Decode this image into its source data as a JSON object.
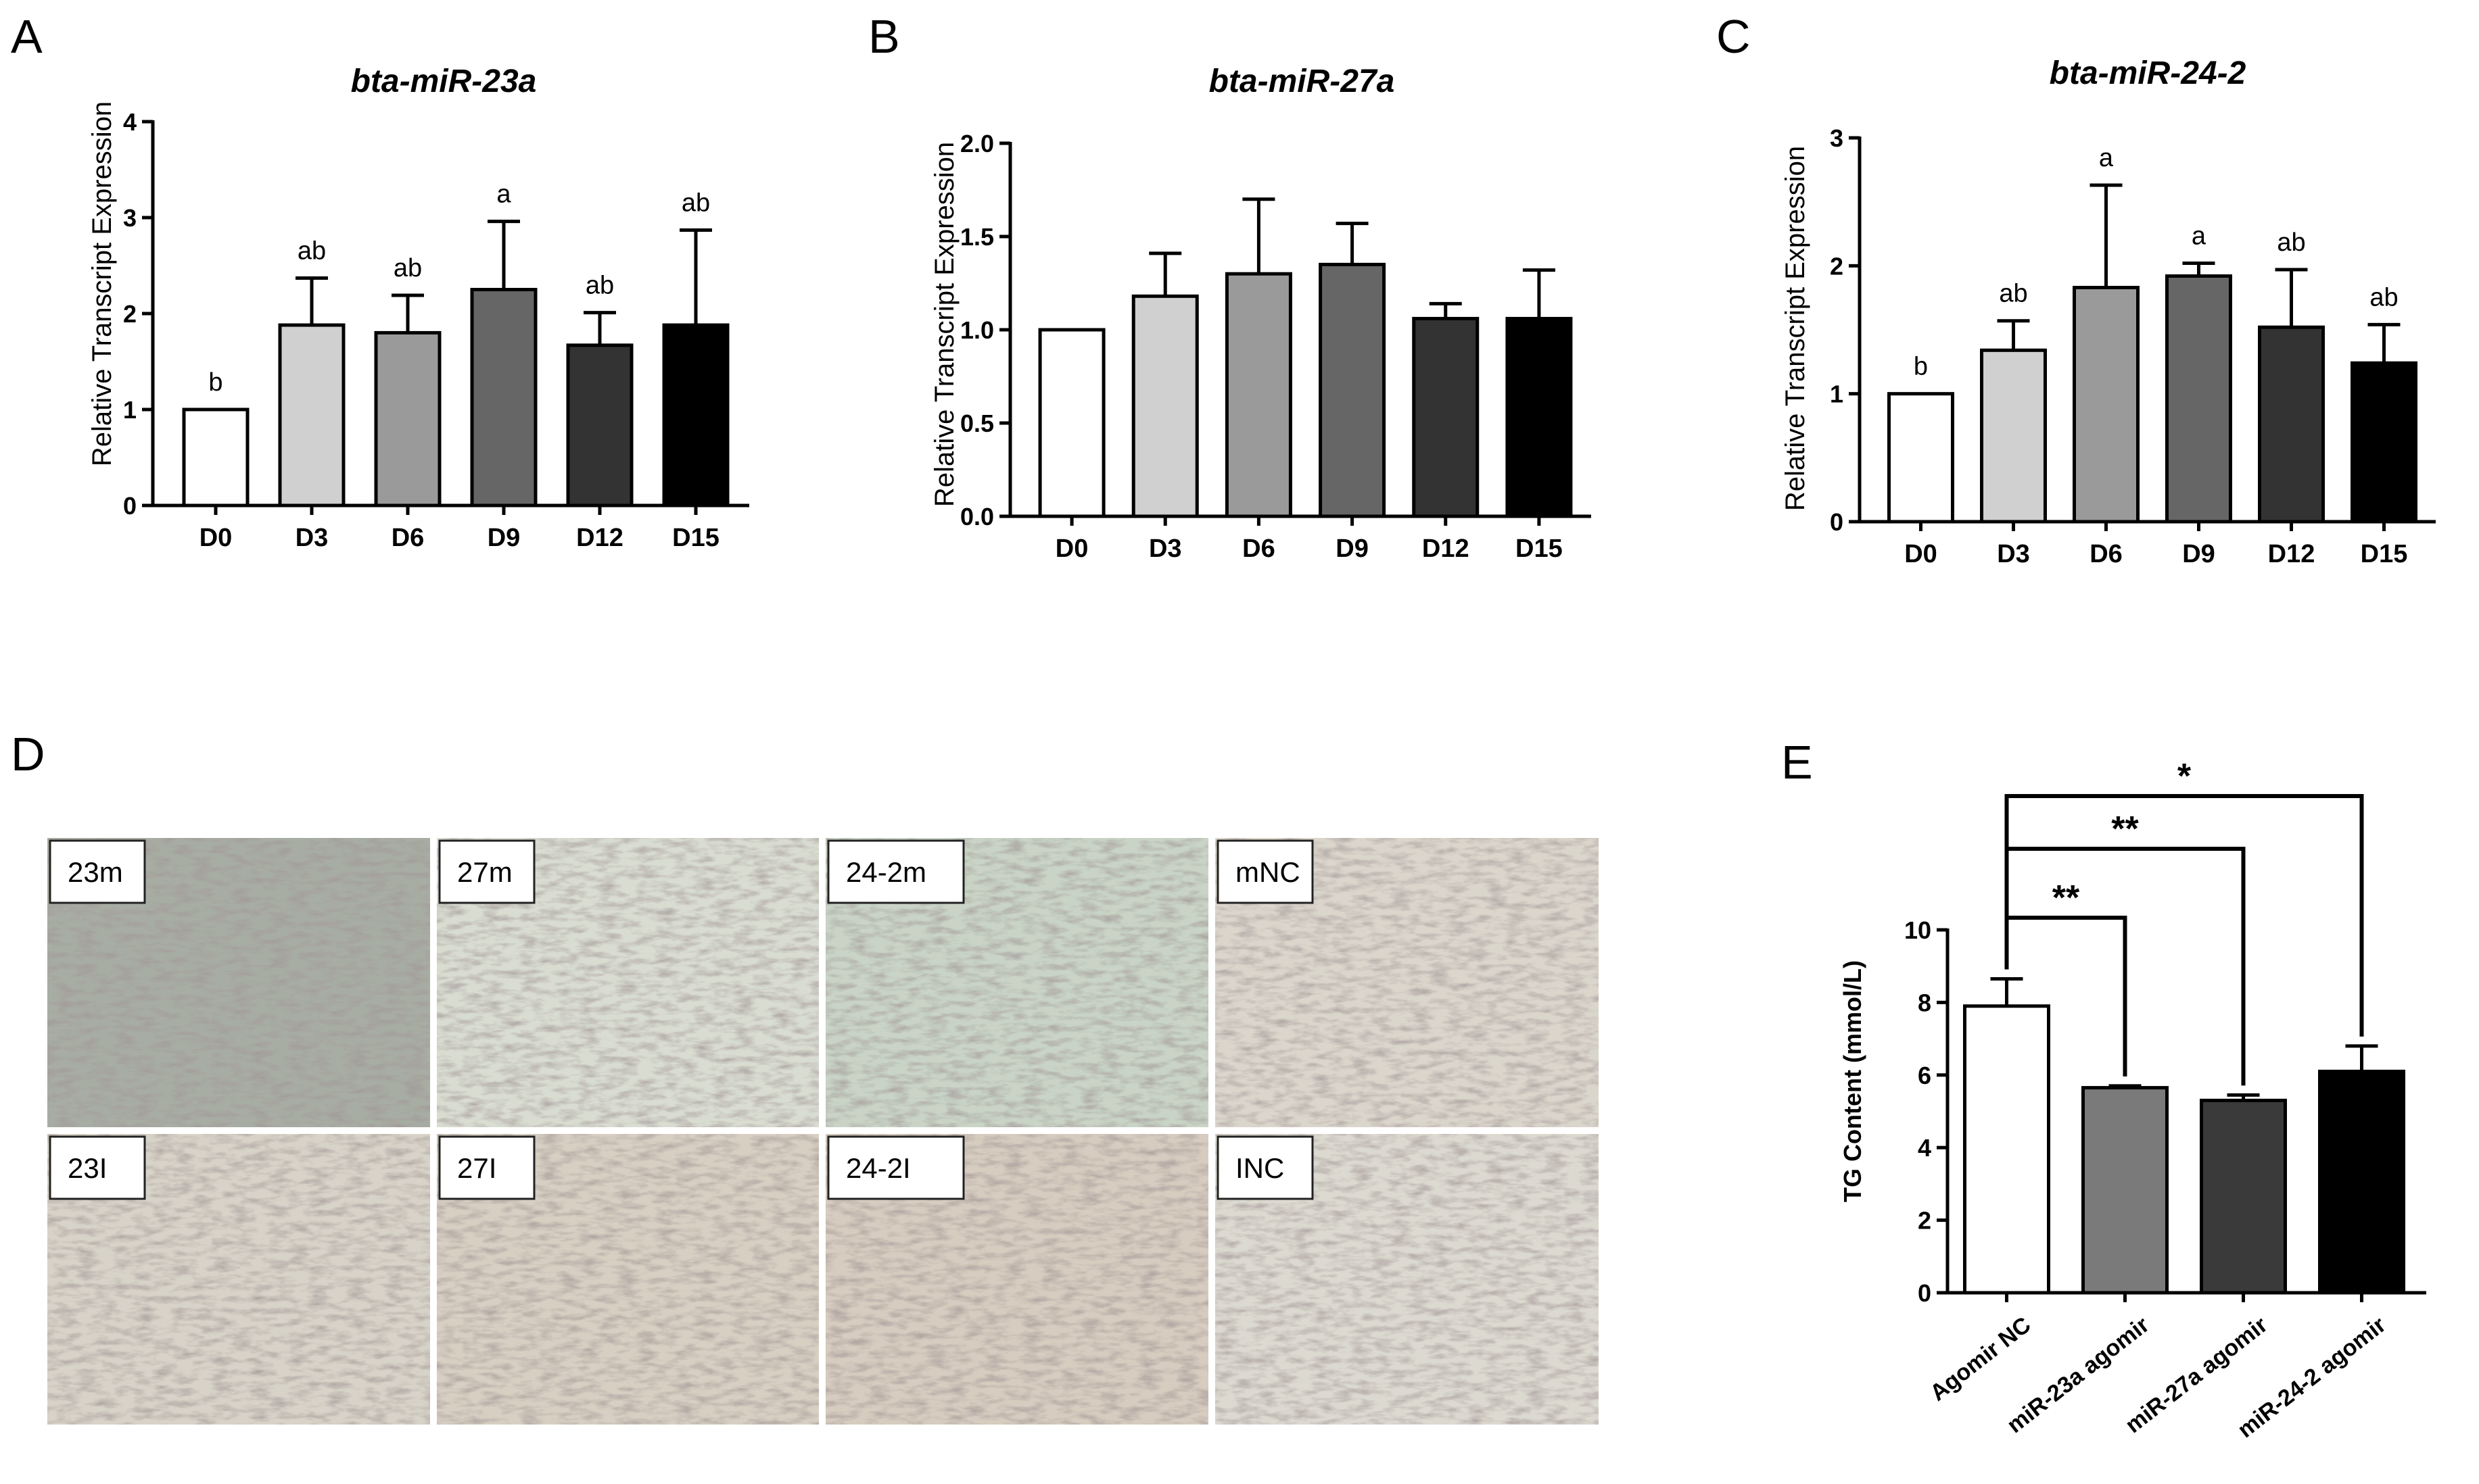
{
  "panel_letters": [
    "A",
    "B",
    "C",
    "D",
    "E"
  ],
  "chart_data": [
    {
      "panel": "A",
      "type": "bar",
      "title": "bta-miR-23a",
      "ylabel": "Relative Transcript Expression",
      "xlabel": "",
      "categories": [
        "D0",
        "D3",
        "D6",
        "D9",
        "D12",
        "D15"
      ],
      "values": [
        1.0,
        1.88,
        1.8,
        2.25,
        1.67,
        1.88
      ],
      "errors": [
        0.0,
        0.49,
        0.39,
        0.71,
        0.34,
        0.99
      ],
      "significance": [
        "b",
        "ab",
        "ab",
        "a",
        "ab",
        "ab"
      ],
      "ylim": [
        0,
        4
      ],
      "yticks": [
        0,
        1,
        2,
        3,
        4
      ],
      "ytick_labels": [
        "0",
        "1",
        "2",
        "3",
        "4"
      ],
      "colors": [
        "#ffffff",
        "#d0d0d0",
        "#9a9a9a",
        "#666666",
        "#333333",
        "#000000"
      ]
    },
    {
      "panel": "B",
      "type": "bar",
      "title": "bta-miR-27a",
      "ylabel": "Relative Transcript Expression",
      "xlabel": "",
      "categories": [
        "D0",
        "D3",
        "D6",
        "D9",
        "D12",
        "D15"
      ],
      "values": [
        1.0,
        1.18,
        1.3,
        1.35,
        1.06,
        1.06
      ],
      "errors": [
        0.0,
        0.23,
        0.4,
        0.22,
        0.08,
        0.26
      ],
      "significance": [
        "",
        "",
        "",
        "",
        "",
        ""
      ],
      "ylim": [
        0,
        2
      ],
      "yticks": [
        0,
        0.5,
        1,
        1.5,
        2
      ],
      "ytick_labels": [
        "0.0",
        "0.5",
        "1.0",
        "1.5",
        "2.0"
      ],
      "colors": [
        "#ffffff",
        "#d0d0d0",
        "#9a9a9a",
        "#666666",
        "#333333",
        "#000000"
      ]
    },
    {
      "panel": "C",
      "type": "bar",
      "title": "bta-miR-24-2",
      "ylabel": "Relative Transcript Expression",
      "xlabel": "",
      "categories": [
        "D0",
        "D3",
        "D6",
        "D9",
        "D12",
        "D15"
      ],
      "values": [
        1.0,
        1.34,
        1.83,
        1.92,
        1.52,
        1.24
      ],
      "errors": [
        0.0,
        0.23,
        0.8,
        0.1,
        0.45,
        0.3
      ],
      "significance": [
        "b",
        "ab",
        "a",
        "a",
        "ab",
        "ab"
      ],
      "ylim": [
        0,
        3
      ],
      "yticks": [
        0,
        1,
        2,
        3
      ],
      "ytick_labels": [
        "0",
        "1",
        "2",
        "3"
      ],
      "colors": [
        "#ffffff",
        "#d0d0d0",
        "#9a9a9a",
        "#666666",
        "#333333",
        "#000000"
      ]
    },
    {
      "panel": "E",
      "type": "bar",
      "title": "",
      "ylabel": "TG Content (mmol/L)",
      "xlabel": "",
      "categories": [
        "Agomir NC",
        "miR-23a agomir",
        "miR-27a agomir",
        "miR-24-2 agomir"
      ],
      "values": [
        7.9,
        5.65,
        5.3,
        6.1
      ],
      "errors": [
        0.75,
        0.05,
        0.15,
        0.7
      ],
      "significance": [
        "",
        "",
        "",
        ""
      ],
      "ylim": [
        0,
        10
      ],
      "yticks": [
        0,
        2,
        4,
        6,
        8,
        10
      ],
      "ytick_labels": [
        "0",
        "2",
        "4",
        "6",
        "8",
        "10"
      ],
      "colors": [
        "#ffffff",
        "#7a7a7a",
        "#3a3a3a",
        "#000000"
      ],
      "comparisons": [
        {
          "from": 0,
          "to": 1,
          "label": "**"
        },
        {
          "from": 0,
          "to": 2,
          "label": "**"
        },
        {
          "from": 0,
          "to": 3,
          "label": "*"
        }
      ]
    }
  ],
  "micrographs": {
    "panel": "D",
    "labels": [
      "23m",
      "27m",
      "24-2m",
      "mNC",
      "23I",
      "27I",
      "24-2I",
      "INC"
    ],
    "tints": [
      "#a8ada3",
      "#d9dcd1",
      "#c9d4c6",
      "#dbd6cc",
      "#d8d3c8",
      "#d7cfc2",
      "#d6ccbf",
      "#dcd9d0"
    ]
  }
}
